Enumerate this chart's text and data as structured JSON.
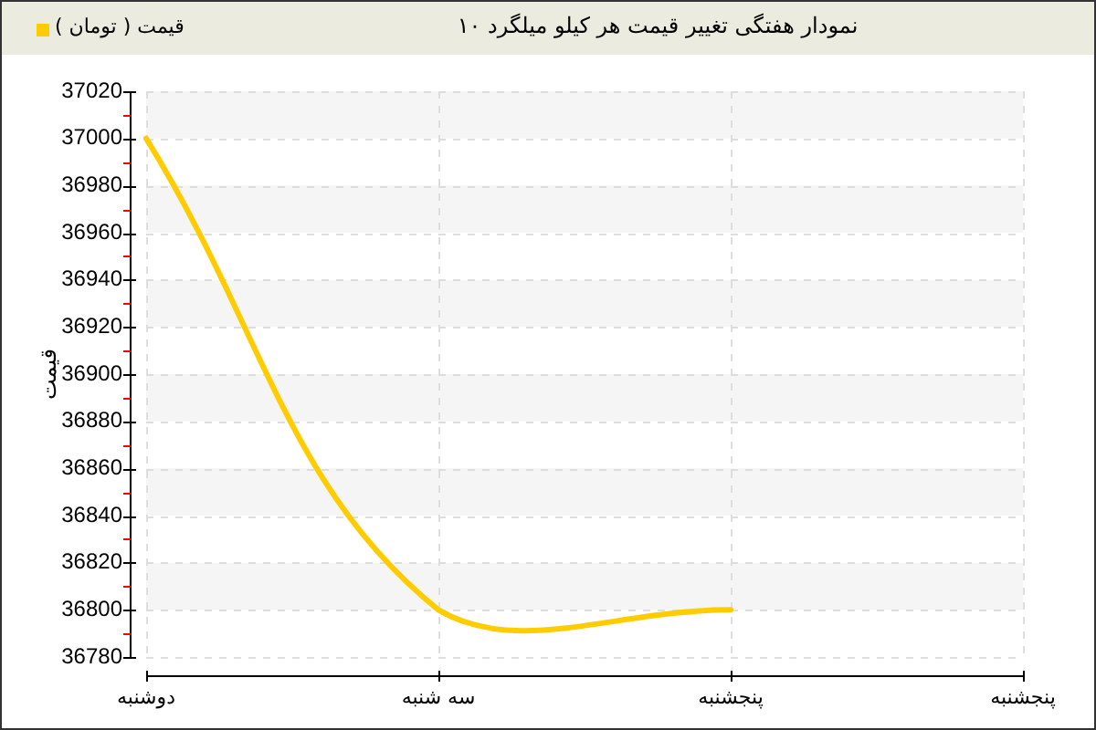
{
  "chart_data": {
    "type": "line",
    "title": "نمودار هفتگی تغییر قیمت هر کیلو میلگرد ۱۰",
    "ylabel": "قیمت",
    "categories": [
      "دوشنبه",
      "سه شنبه",
      "پنجشنبه",
      "پنجشنبه"
    ],
    "series": [
      {
        "name": "قیمت ( تومان )",
        "color": "#ffcc00",
        "values": [
          37000,
          36800,
          36800,
          null
        ]
      }
    ],
    "ylim": [
      36780,
      37020
    ],
    "yticks": [
      36780,
      {
        "value": 36790,
        "label": null
      },
      36800,
      {
        "value": 36810,
        "label": null
      },
      36820,
      {
        "value": 36830,
        "label": null
      },
      36840,
      {
        "value": 36850,
        "label": null
      },
      36860,
      {
        "value": 36870,
        "label": null
      },
      36880,
      {
        "value": 36890,
        "label": null
      },
      36900,
      {
        "value": 36910,
        "label": null
      },
      36920,
      {
        "value": 36930,
        "label": null
      },
      36940,
      {
        "value": 36950,
        "label": null
      },
      36960,
      {
        "value": 36970,
        "label": null
      },
      36980,
      {
        "value": 36990,
        "label": null
      },
      37000,
      {
        "value": 37010,
        "label": null
      },
      37020
    ],
    "grid": true,
    "legend": "top left"
  }
}
